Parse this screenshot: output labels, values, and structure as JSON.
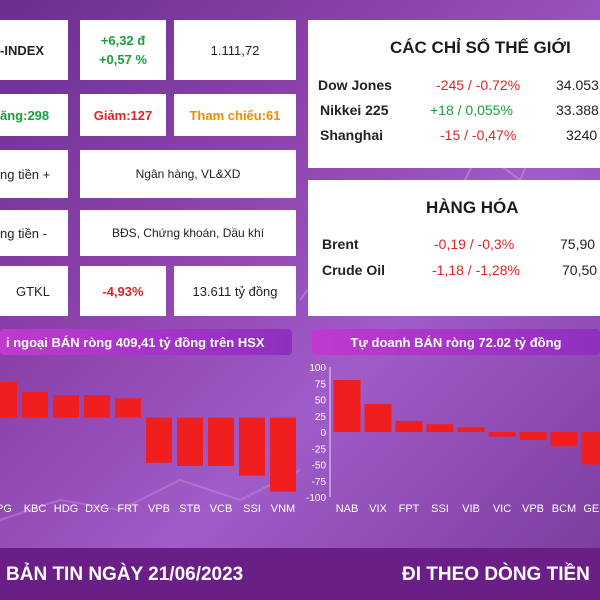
{
  "market_table": {
    "index_label": "-INDEX",
    "index_change": "+6,32 đ",
    "index_change_pct": "+0,57 %",
    "index_value": "1.111,72",
    "up": "ăng:298",
    "down": "Giảm:127",
    "ref": "Tham chiếu:61",
    "inflow_label": "ng tiền +",
    "inflow_sectors": "Ngân hàng, VL&XD",
    "outflow_label": "ng tiền -",
    "outflow_sectors": "BĐS, Chứng khoán, Dầu khí",
    "gtkl_label": "GTKL",
    "gtkl_change": "-4,93%",
    "gtkl_value": "13.611 tỷ đồng"
  },
  "world": {
    "title": "CÁC CHỈ SỐ THẾ GIỚI",
    "rows": [
      {
        "name": "Dow Jones",
        "change": "-245 / -0.72%",
        "value": "34.053"
      },
      {
        "name": "Nikkei 225",
        "change": "+18 / 0,055%",
        "value": "33.388"
      },
      {
        "name": "Shanghai",
        "change": "-15 / -0,47%",
        "value": "3240"
      }
    ]
  },
  "commodities": {
    "title": "HÀNG HÓA",
    "rows": [
      {
        "name": "Brent",
        "change": "-0,19 / -0,3%",
        "value": "75,90"
      },
      {
        "name": "Crude Oil",
        "change": "-1,18 / -1,28%",
        "value": "70,50"
      }
    ]
  },
  "chart_data": [
    {
      "type": "bar",
      "title": "i ngoại BÁN ròng  409,41 tỷ đồng trên HSX",
      "categories": [
        "PG",
        "KBC",
        "HDG",
        "DXG",
        "FRT",
        "VPB",
        "STB",
        "VCB",
        "SSI",
        "VNM"
      ],
      "values": [
        55,
        40,
        35,
        35,
        30,
        -70,
        -75,
        -75,
        -90,
        -115
      ],
      "ylim": [
        -120,
        80
      ],
      "color": "#f01e1e"
    },
    {
      "type": "bar",
      "title": "Tự doanh BÁN ròng 72.02 tỷ đồng",
      "categories": [
        "NAB",
        "VIX",
        "FPT",
        "SSI",
        "VIB",
        "VIC",
        "VPB",
        "BCM",
        "GEE"
      ],
      "values": [
        80,
        43,
        17,
        12,
        7,
        -7,
        -12,
        -22,
        -50
      ],
      "ylim": [
        -100,
        100
      ],
      "yticks": [
        100,
        75,
        50,
        25,
        0,
        -25,
        -50,
        -75,
        -100
      ],
      "color": "#f01e1e"
    }
  ],
  "footer": {
    "left": "BẢN TIN NGÀY 21/06/2023",
    "right": "ĐI THEO DÒNG TIỀN"
  }
}
